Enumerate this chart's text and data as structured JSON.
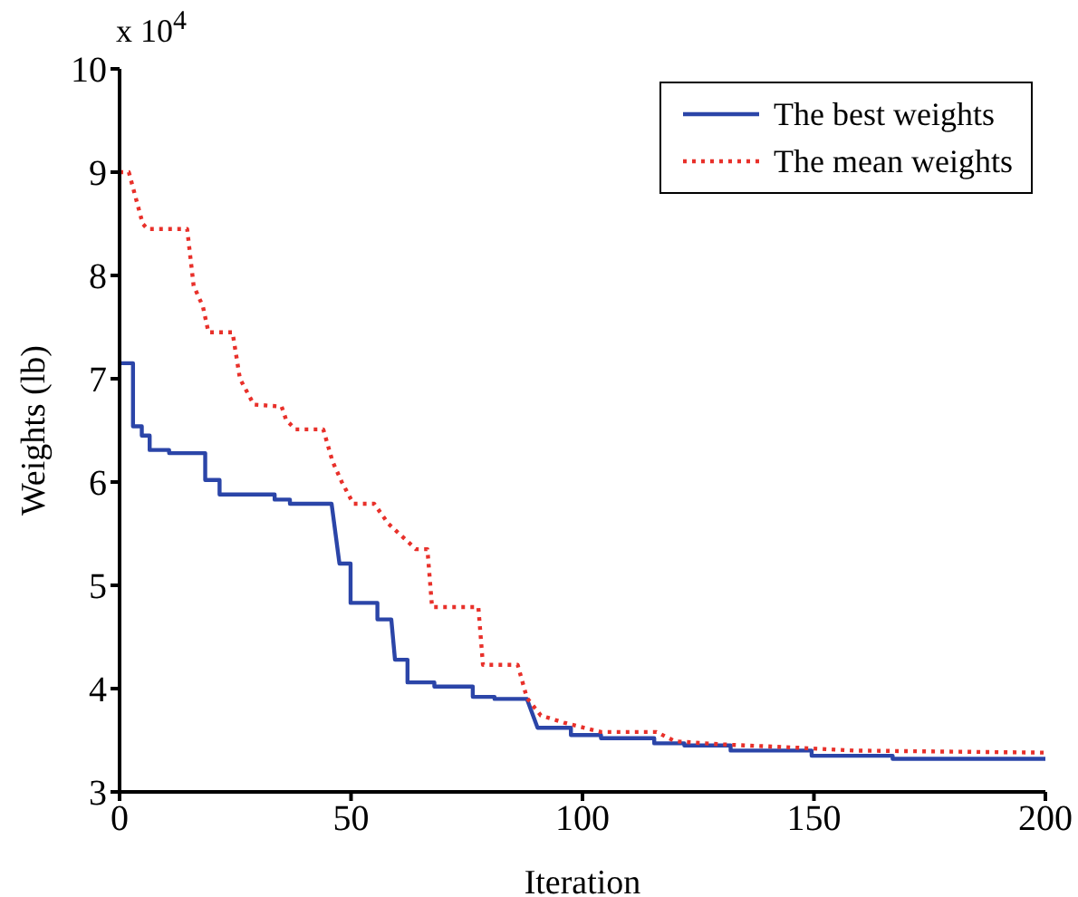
{
  "chart_data": {
    "type": "line",
    "xlabel": "Iteration",
    "ylabel": "Weights (lb)",
    "annotations": [
      "x 10$^{4}$"
    ],
    "xlim": [
      0,
      200
    ],
    "xticks": [
      0,
      50,
      100,
      150,
      200
    ],
    "ylim": [
      3,
      10
    ],
    "yticks": [
      3,
      4,
      5,
      6,
      7,
      8,
      9,
      10
    ],
    "grid": false,
    "legend": "top right",
    "marker": "none",
    "series": [
      {
        "name": "The best weights",
        "color": "#2b45a8",
        "line_style": "solid",
        "x": [
          0,
          2.9,
          2.9,
          4.8,
          4.8,
          6.5,
          6.5,
          10.7,
          10.7,
          18.5,
          18.5,
          21.6,
          21.6,
          33.5,
          33.5,
          36.8,
          36.8,
          45.8,
          47.5,
          49.9,
          49.9,
          55.7,
          55.7,
          58.7,
          59.5,
          62.2,
          62.2,
          68,
          68,
          76.3,
          76.3,
          81,
          81,
          88,
          90.3,
          97.5,
          97.5,
          104,
          104,
          115.5,
          115.5,
          122,
          122,
          132,
          132,
          149.5,
          149.5,
          167,
          167,
          200
        ],
        "values": [
          7.15,
          7.15,
          6.54,
          6.54,
          6.45,
          6.45,
          6.31,
          6.31,
          6.28,
          6.28,
          6.02,
          6.02,
          5.88,
          5.88,
          5.83,
          5.83,
          5.79,
          5.79,
          5.21,
          5.21,
          4.83,
          4.83,
          4.67,
          4.67,
          4.28,
          4.28,
          4.06,
          4.06,
          4.02,
          4.02,
          3.92,
          3.92,
          3.9,
          3.9,
          3.62,
          3.62,
          3.55,
          3.55,
          3.52,
          3.52,
          3.47,
          3.47,
          3.45,
          3.45,
          3.4,
          3.4,
          3.35,
          3.35,
          3.32,
          3.32
        ]
      },
      {
        "name": "The mean weights",
        "color": "#e8302a",
        "line_style": "dotted",
        "x": [
          0,
          2,
          5,
          6,
          14.6,
          16,
          18,
          19.2,
          24.4,
          26,
          29,
          35,
          36,
          38,
          44,
          46,
          48,
          50.5,
          55,
          58,
          64,
          66.5,
          67.5,
          77.5,
          78.5,
          86,
          88,
          91,
          96,
          104,
          116,
          120,
          130,
          145.5,
          158.7,
          200
        ],
        "values": [
          9.0,
          9.0,
          8.5,
          8.45,
          8.45,
          7.9,
          7.7,
          7.45,
          7.45,
          7.0,
          6.75,
          6.73,
          6.6,
          6.51,
          6.51,
          6.2,
          6.0,
          5.79,
          5.79,
          5.6,
          5.35,
          5.35,
          4.79,
          4.79,
          4.23,
          4.23,
          3.91,
          3.74,
          3.67,
          3.58,
          3.58,
          3.49,
          3.46,
          3.43,
          3.4,
          3.38
        ]
      }
    ]
  }
}
